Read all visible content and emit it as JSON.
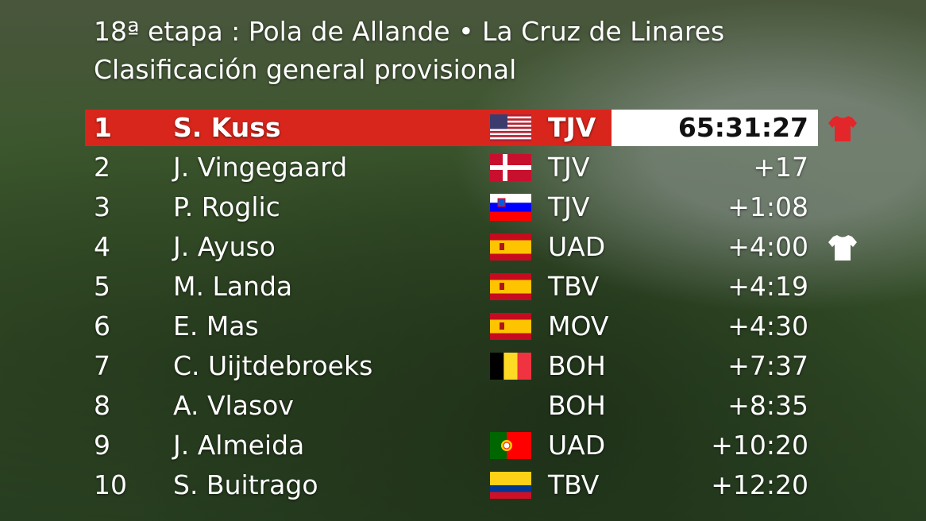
{
  "header": {
    "title": "18ª etapa : Pola de Allande • La Cruz de Linares",
    "subtitle": "Clasificación general provisional"
  },
  "rows": [
    {
      "rank": "1",
      "name": "S. Kuss",
      "team": "TJV",
      "time": "65:31:27"
    },
    {
      "rank": "2",
      "name": "J. Vingegaard",
      "team": "TJV",
      "time": "+17"
    },
    {
      "rank": "3",
      "name": "P. Roglic",
      "team": "TJV",
      "time": "+1:08"
    },
    {
      "rank": "4",
      "name": "J. Ayuso",
      "team": "UAD",
      "time": "+4:00"
    },
    {
      "rank": "5",
      "name": "M. Landa",
      "team": "TBV",
      "time": "+4:19"
    },
    {
      "rank": "6",
      "name": "E. Mas",
      "team": "MOV",
      "time": "+4:30"
    },
    {
      "rank": "7",
      "name": "C. Uijtdebroeks",
      "team": "BOH",
      "time": "+7:37"
    },
    {
      "rank": "8",
      "name": "A. Vlasov",
      "team": "BOH",
      "time": "+8:35"
    },
    {
      "rank": "9",
      "name": "J. Almeida",
      "team": "UAD",
      "time": "+10:20"
    },
    {
      "rank": "10",
      "name": "S. Buitrago",
      "team": "TBV",
      "time": "+12:20"
    }
  ]
}
